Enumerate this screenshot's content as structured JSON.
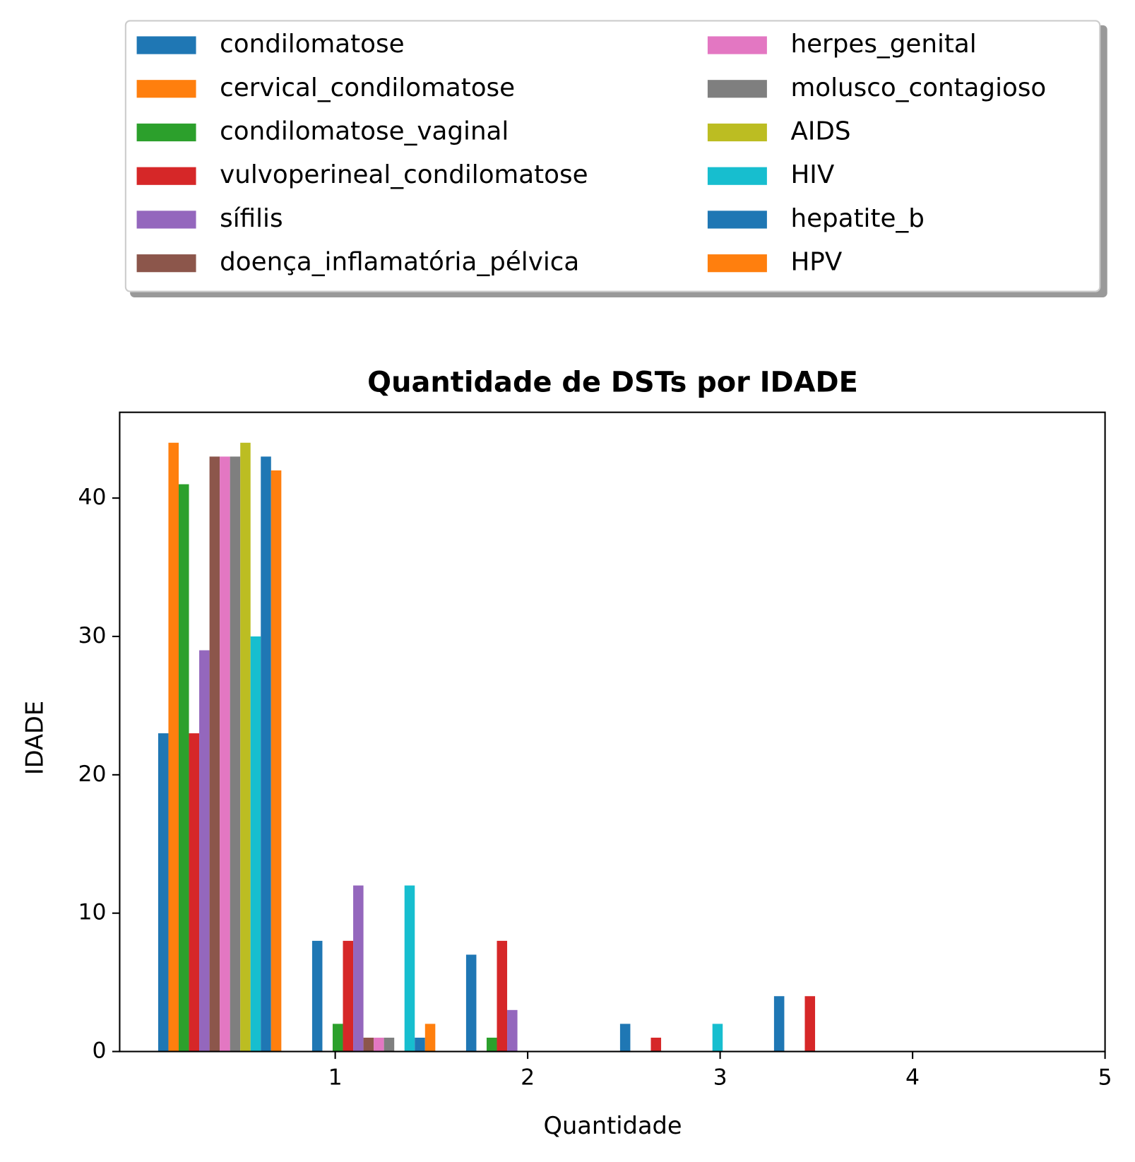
{
  "chart_data": {
    "type": "histogram",
    "title": "Quantidade de DSTs por IDADE",
    "xlabel": "Quantidade",
    "ylabel": "IDADE",
    "bins": [
      0,
      0.8,
      1.6,
      2.4,
      3.2,
      4.0
    ],
    "series": [
      {
        "name": "condilomatose",
        "color": "#1f77b4",
        "values": [
          23,
          8,
          7,
          2,
          4
        ]
      },
      {
        "name": "cervical_condilomatose",
        "color": "#ff7f0e",
        "values": [
          44,
          0,
          0,
          0,
          0
        ]
      },
      {
        "name": "condilomatose_vaginal",
        "color": "#2ca02c",
        "values": [
          41,
          2,
          1,
          0,
          0
        ]
      },
      {
        "name": "vulvoperineal_condilomatose",
        "color": "#d62728",
        "values": [
          23,
          8,
          8,
          1,
          4
        ]
      },
      {
        "name": "sífilis",
        "color": "#9467bd",
        "values": [
          29,
          12,
          3,
          0,
          0
        ]
      },
      {
        "name": "doença_inflamatória_pélvica",
        "color": "#8c564b",
        "values": [
          43,
          1,
          0,
          0,
          0
        ]
      },
      {
        "name": "herpes_genital",
        "color": "#e377c2",
        "values": [
          43,
          1,
          0,
          0,
          0
        ]
      },
      {
        "name": "molusco_contagioso",
        "color": "#7f7f7f",
        "values": [
          43,
          1,
          0,
          0,
          0
        ]
      },
      {
        "name": "AIDS",
        "color": "#bcbd22",
        "values": [
          44,
          0,
          0,
          0,
          0
        ]
      },
      {
        "name": "HIV",
        "color": "#17becf",
        "values": [
          30,
          12,
          0,
          2,
          0
        ]
      },
      {
        "name": "hepatite_b",
        "color": "#1f77b4",
        "values": [
          43,
          1,
          0,
          0,
          0
        ]
      },
      {
        "name": "HPV",
        "color": "#ff7f0e",
        "values": [
          42,
          2,
          0,
          0,
          0
        ]
      }
    ],
    "xlim": [
      -0.12,
      5
    ],
    "ylim": [
      0,
      46.2
    ],
    "xticks": [
      1,
      2,
      3,
      4,
      5
    ],
    "yticks": [
      0,
      10,
      20,
      30,
      40
    ],
    "legend": "top",
    "legend_columns": 2
  }
}
